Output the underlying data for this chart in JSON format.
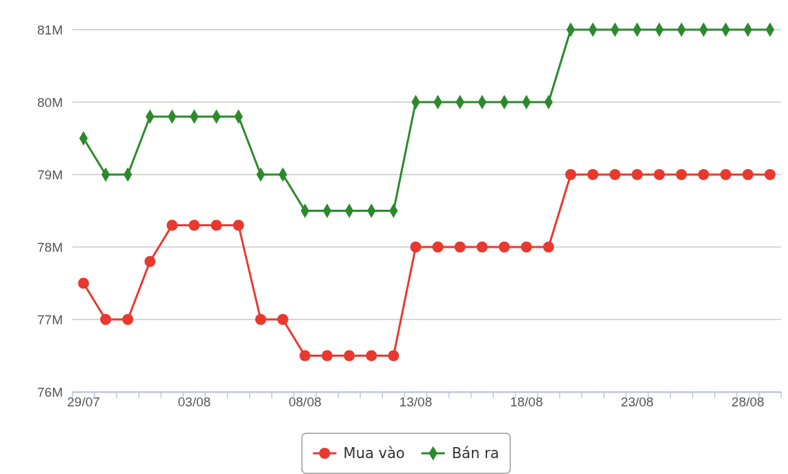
{
  "chart_data": {
    "type": "line",
    "categories": [
      "29/07",
      null,
      null,
      null,
      null,
      "03/08",
      null,
      null,
      null,
      null,
      "08/08",
      null,
      null,
      null,
      null,
      "13/08",
      null,
      null,
      null,
      null,
      "18/08",
      null,
      null,
      null,
      null,
      "23/08",
      null,
      null,
      null,
      null,
      "28/08",
      null
    ],
    "series": [
      {
        "name": "Mua vào",
        "color": "#e8392e",
        "marker": "circle",
        "values": [
          77.5,
          77,
          77,
          77.8,
          78.3,
          78.3,
          78.3,
          78.3,
          77,
          77,
          76.5,
          76.5,
          76.5,
          76.5,
          76.5,
          78,
          78,
          78,
          78,
          78,
          78,
          78,
          79,
          79,
          79,
          79,
          79,
          79,
          79,
          79,
          79,
          79
        ]
      },
      {
        "name": "Bán ra",
        "color": "#2b8a2b",
        "marker": "diamond",
        "values": [
          79.5,
          79,
          79,
          79.8,
          79.8,
          79.8,
          79.8,
          79.8,
          79,
          79,
          78.5,
          78.5,
          78.5,
          78.5,
          78.5,
          80,
          80,
          80,
          80,
          80,
          80,
          80,
          81,
          81,
          81,
          81,
          81,
          81,
          81,
          81,
          81,
          81
        ]
      }
    ],
    "ylim": [
      76,
      81
    ],
    "yticks": [
      {
        "value": 76,
        "label": "76M"
      },
      {
        "value": 77,
        "label": "77M"
      },
      {
        "value": 78,
        "label": "78M"
      },
      {
        "value": 79,
        "label": "79M"
      },
      {
        "value": 80,
        "label": "80M"
      },
      {
        "value": 81,
        "label": "81M"
      }
    ],
    "grid": "y",
    "legend": "bottom",
    "line_style": "solid"
  }
}
